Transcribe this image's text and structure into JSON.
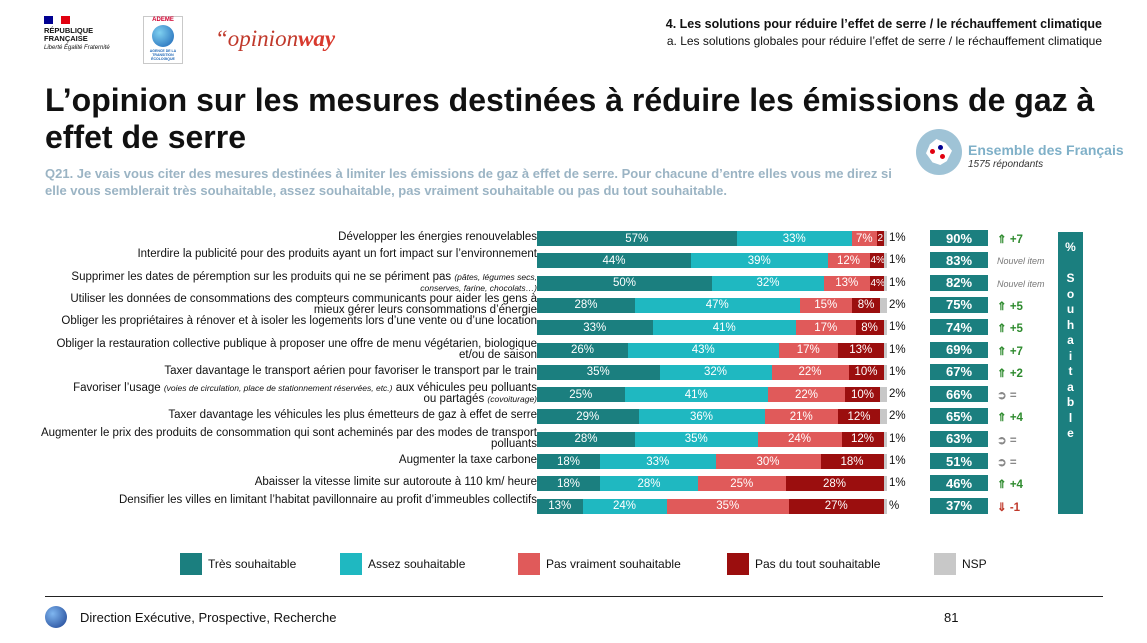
{
  "header": {
    "rf_line1": "RÉPUBLIQUE",
    "rf_line2": "FRANÇAISE",
    "rf_motto": "Liberté Égalité Fraternité",
    "ademe_name": "ADEME",
    "ademe_sub": "AGENCE DE LA TRANSITION ÉCOLOGIQUE",
    "opinionway_pre": "“opinion",
    "opinionway_post": "way",
    "section": "4.   Les solutions pour réduire l’effet de serre / le réchauffement climatique",
    "subsection": "a.   Les solutions globales pour réduire l’effet de serre / le réchauffement climatique"
  },
  "title": "L’opinion sur les mesures destinées à réduire les émissions de gaz à effet de serre",
  "question": "Q21. Je vais vous citer des mesures destinées à limiter les émissions de gaz à effet de serre. Pour chacune d’entre elles vous me direz si elle vous semblerait très souhaitable, assez souhaitable, pas vraiment souhaitable ou pas du tout souhaitable.",
  "population": {
    "label": "Ensemble des Français",
    "count": "1575 répondants"
  },
  "side_label": "% Souhaitable",
  "colors": {
    "tres": "#1b7f7f",
    "assez": "#1fb8c1",
    "pas_vraiment": "#e05a5a",
    "pas_du_tout": "#9b0e0e",
    "nsp": "#c8c8c8",
    "total_box": "#1b7f7f"
  },
  "chart_data": {
    "type": "bar",
    "stacked": true,
    "orientation": "horizontal",
    "xlim": [
      0,
      100
    ],
    "legend_position": "bottom",
    "series": [
      {
        "name": "Très souhaitable",
        "color": "#1b7f7f"
      },
      {
        "name": "Assez souhaitable",
        "color": "#1fb8c1"
      },
      {
        "name": "Pas vraiment souhaitable",
        "color": "#e05a5a"
      },
      {
        "name": "Pas du tout souhaitable",
        "color": "#9b0e0e"
      },
      {
        "name": "NSP",
        "color": "#c8c8c8"
      }
    ],
    "rows": [
      {
        "label": "Développer les énergies renouvelables",
        "values": [
          57,
          33,
          7,
          2,
          1
        ],
        "labels": [
          "57%",
          "33%",
          "7%",
          "2",
          "1%"
        ],
        "total": "90%",
        "evolution": "+7",
        "trend": "up"
      },
      {
        "label": "Interdire la publicité pour des produits ayant un fort impact sur l’environnement",
        "values": [
          44,
          39,
          12,
          4,
          1
        ],
        "labels": [
          "44%",
          "39%",
          "12%",
          "4%",
          "1%"
        ],
        "total": "83%",
        "evolution": "Nouvel item",
        "trend": "new"
      },
      {
        "label": "Supprimer les dates de péremption sur les produits qui ne se périment pas",
        "label_note": "(pâtes, légumes secs, conserves, farine, chocolats…)",
        "values": [
          50,
          32,
          13,
          4,
          1
        ],
        "labels": [
          "50%",
          "32%",
          "13%",
          "4%",
          "1%"
        ],
        "total": "82%",
        "evolution": "Nouvel item",
        "trend": "new"
      },
      {
        "label": "Utiliser les données de consommations des compteurs communicants pour aider les gens à mieux gérer leurs consommations d’énergie",
        "values": [
          28,
          47,
          15,
          8,
          2
        ],
        "labels": [
          "28%",
          "47%",
          "15%",
          "8%",
          "2%"
        ],
        "total": "75%",
        "evolution": "+5",
        "trend": "up"
      },
      {
        "label": "Obliger les propriétaires à rénover et à isoler les logements lors d’une vente ou d’une location",
        "values": [
          33,
          41,
          17,
          8,
          1
        ],
        "labels": [
          "33%",
          "41%",
          "17%",
          "8%",
          "1%"
        ],
        "total": "74%",
        "evolution": "+5",
        "trend": "up"
      },
      {
        "label": "Obliger la restauration collective publique à proposer une offre de menu végétarien, biologique et/ou de saison",
        "values": [
          26,
          43,
          17,
          13,
          1
        ],
        "labels": [
          "26%",
          "43%",
          "17%",
          "13%",
          "1%"
        ],
        "total": "69%",
        "evolution": "+7",
        "trend": "up"
      },
      {
        "label": "Taxer davantage le transport aérien pour favoriser le transport par le train",
        "values": [
          35,
          32,
          22,
          10,
          1
        ],
        "labels": [
          "35%",
          "32%",
          "22%",
          "10%",
          "1%"
        ],
        "total": "67%",
        "evolution": "+2",
        "trend": "up"
      },
      {
        "label": "Favoriser l’usage aux véhicules peu polluants ou partagés",
        "label_note": "(voies de circulation, place de stationnement réservées, etc.)",
        "label_note2": "(covoiturage)",
        "values": [
          25,
          41,
          22,
          10,
          2
        ],
        "labels": [
          "25%",
          "41%",
          "22%",
          "10%",
          "2%"
        ],
        "total": "66%",
        "evolution": "=",
        "trend": "eq"
      },
      {
        "label": "Taxer davantage les véhicules les plus émetteurs de gaz à effet de serre",
        "values": [
          29,
          36,
          21,
          12,
          2
        ],
        "labels": [
          "29%",
          "36%",
          "21%",
          "12%",
          "2%"
        ],
        "total": "65%",
        "evolution": "+4",
        "trend": "up"
      },
      {
        "label": "Augmenter le prix des produits de consommation qui sont acheminés par des modes de transport polluants",
        "values": [
          28,
          35,
          24,
          12,
          1
        ],
        "labels": [
          "28%",
          "35%",
          "24%",
          "12%",
          "1%"
        ],
        "total": "63%",
        "evolution": "=",
        "trend": "eq"
      },
      {
        "label": "Augmenter la taxe carbone",
        "values": [
          18,
          33,
          30,
          18,
          1
        ],
        "labels": [
          "18%",
          "33%",
          "30%",
          "18%",
          "1%"
        ],
        "total": "51%",
        "evolution": "=",
        "trend": "eq"
      },
      {
        "label": "Abaisser la vitesse limite sur autoroute à 110 km/ heure",
        "values": [
          18,
          28,
          25,
          28,
          1
        ],
        "labels": [
          "18%",
          "28%",
          "25%",
          "28%",
          "1%"
        ],
        "total": "46%",
        "evolution": "+4",
        "trend": "up"
      },
      {
        "label": "Densifier les villes en limitant l’habitat pavillonnaire au profit d’immeubles collectifs",
        "values": [
          13,
          24,
          35,
          27,
          1
        ],
        "labels": [
          "13%",
          "24%",
          "35%",
          "27%",
          "%"
        ],
        "total": "37%",
        "evolution": "-1",
        "trend": "down"
      }
    ]
  },
  "footer": {
    "text": "Direction Exécutive, Prospective, Recherche",
    "page": "81"
  }
}
